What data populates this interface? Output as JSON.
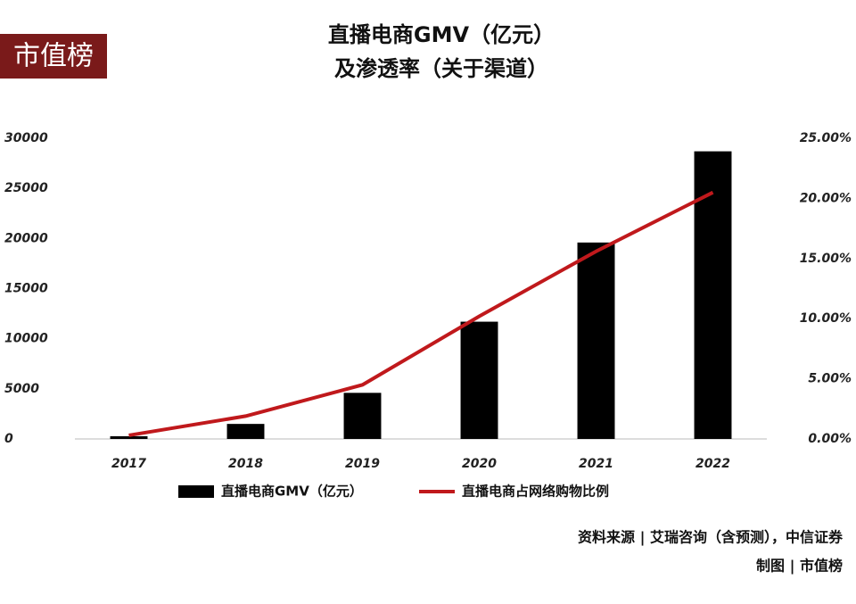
{
  "logo": "市值榜",
  "source": [
    "资料来源 | 艾瑞咨询（含预测），中信证券",
    "制图 | 市值榜"
  ],
  "chart_data": {
    "type": "bar-line",
    "title": "直播电商GMV（亿元）",
    "subtitle": "及渗透率（关于渠道）",
    "categories": [
      "2017",
      "2018",
      "2019",
      "2020",
      "2021",
      "2022"
    ],
    "series": [
      {
        "name": "直播电商GMV（亿元）",
        "type": "bar",
        "color": "#000000",
        "values": [
          270,
          1500,
          4600,
          11700,
          19600,
          28700
        ]
      },
      {
        "name": "直播电商占网络购物比例",
        "type": "line",
        "axis": "y2",
        "color": "#c0191c",
        "values": [
          0.3,
          1.9,
          4.5,
          10.2,
          15.6,
          20.5
        ]
      }
    ],
    "ylim": [
      0,
      30000
    ],
    "yticks": [
      0,
      5000,
      10000,
      15000,
      20000,
      25000,
      30000
    ],
    "y2lim": [
      0,
      25
    ],
    "y2ticks": [
      {
        "value": 0,
        "label": "0.00%"
      },
      {
        "value": 5,
        "label": "5.00%"
      },
      {
        "value": 10,
        "label": "10.00%"
      },
      {
        "value": 15,
        "label": "15.00%"
      },
      {
        "value": 20,
        "label": "20.00%"
      },
      {
        "value": 25,
        "label": "25.00%"
      }
    ],
    "grid": false,
    "legend": "bottom"
  }
}
